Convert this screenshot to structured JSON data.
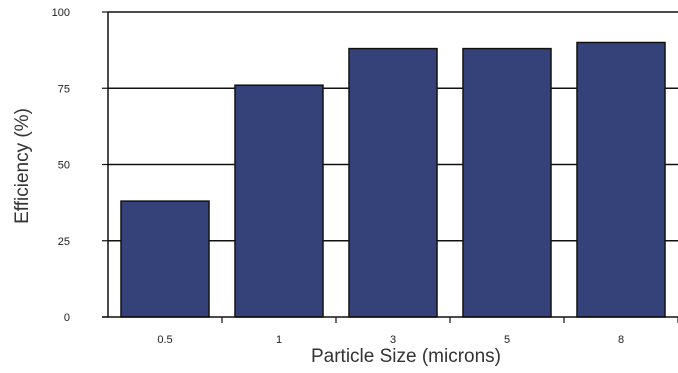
{
  "chart_data": {
    "type": "bar",
    "title": "",
    "xlabel": "Particle Size (microns)",
    "ylabel": "Efficiency (%)",
    "categories": [
      "0.5",
      "1",
      "3",
      "5",
      "8"
    ],
    "values": [
      38,
      76,
      88,
      88,
      90
    ],
    "ylim": [
      0,
      100
    ],
    "yticks": [
      "0",
      "25",
      "50",
      "75",
      "100"
    ],
    "grid": true,
    "legend": "none",
    "bar_color": "#35427a",
    "bar_edge_color": "#111111",
    "title_color": "#2f6bd8"
  }
}
